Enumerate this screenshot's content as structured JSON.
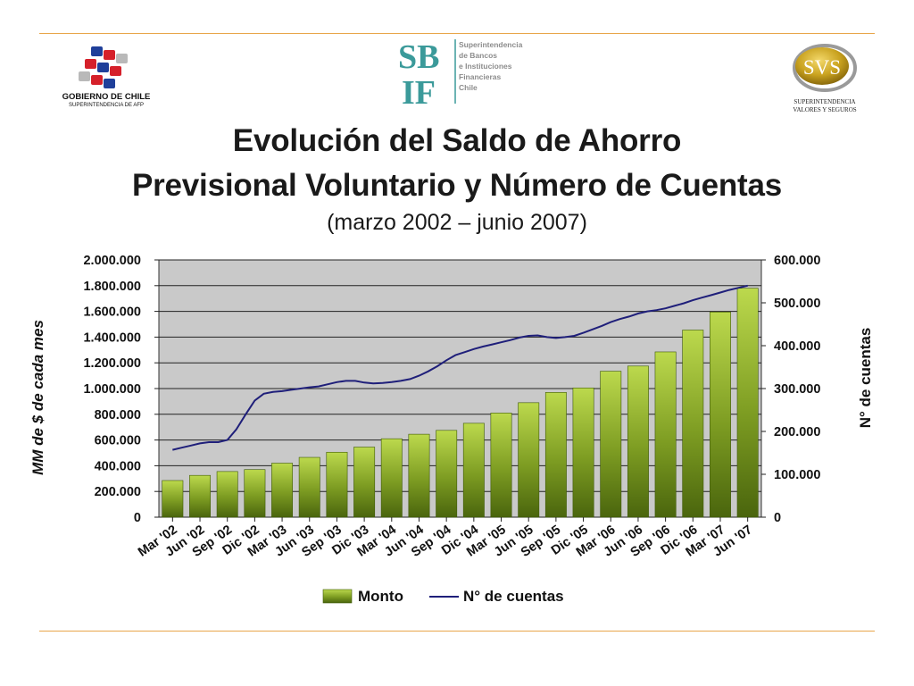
{
  "header": {
    "logo_left": {
      "name": "gobierno-de-chile-logo",
      "line1": "GOBIERNO DE CHILE",
      "line2": "SUPERINTENDENCIA DE AFP"
    },
    "logo_center": {
      "name": "sbif-logo",
      "mark_top": "SB",
      "mark_bottom": "IF",
      "lines": [
        "Superintendencia",
        "de Bancos",
        "e Instituciones",
        "Financieras",
        "Chile"
      ]
    },
    "logo_right": {
      "name": "svs-logo",
      "mark": "SVS",
      "line1": "SUPERINTENDENCIA",
      "line2": "VALORES Y SEGUROS"
    }
  },
  "slide": {
    "title_line1": "Evolución del Saldo de Ahorro",
    "title_line2": "Previsional Voluntario y Número de Cuentas",
    "subtitle": "(marzo 2002 – junio 2007)"
  },
  "colors": {
    "rule": "#e8a64a",
    "plot_bg": "#c9c9c9",
    "bar_light": "#b9d64a",
    "bar_dark": "#4f6b10",
    "line": "#1f1f7a"
  },
  "chart_data": {
    "type": "bar",
    "categories": [
      "Mar '02",
      "Jun '02",
      "Sep '02",
      "Dic '02",
      "Mar '03",
      "Jun '03",
      "Sep '03",
      "Dic '03",
      "Mar '04",
      "Jun '04",
      "Sep '04",
      "Dic '04",
      "Mar '05",
      "Jun '05",
      "Sep '05",
      "Dic '05",
      "Mar '06",
      "Jun '06",
      "Sep '06",
      "Dic '06",
      "Mar '07",
      "Jun '07"
    ],
    "series": [
      {
        "name": "Monto",
        "type": "bar",
        "axis": "left",
        "values": [
          285000,
          325000,
          355000,
          370000,
          420000,
          465000,
          505000,
          545000,
          610000,
          645000,
          675000,
          730000,
          810000,
          890000,
          970000,
          1005000,
          1135000,
          1175000,
          1285000,
          1455000,
          1595000,
          1780000
        ]
      },
      {
        "name": "N° de cuentas",
        "type": "line",
        "axis": "right",
        "x": [
          0,
          0.33,
          0.67,
          1,
          1.33,
          1.67,
          2,
          2.33,
          2.67,
          3,
          3.33,
          3.67,
          4,
          4.33,
          4.67,
          5,
          5.33,
          5.67,
          6,
          6.33,
          6.67,
          7,
          7.33,
          7.67,
          8,
          8.33,
          8.67,
          9,
          9.33,
          9.67,
          10,
          10.33,
          10.67,
          11,
          11.33,
          11.67,
          12,
          12.33,
          12.67,
          13,
          13.33,
          13.67,
          14,
          14.33,
          14.67,
          15,
          15.33,
          15.67,
          16,
          16.33,
          16.67,
          17,
          17.33,
          17.67,
          18,
          18.33,
          18.67,
          19,
          19.33,
          19.67,
          20,
          20.33,
          20.67,
          21
        ],
        "values": [
          157000,
          162000,
          167000,
          172000,
          175000,
          175000,
          180000,
          205000,
          240000,
          272000,
          288000,
          292000,
          294000,
          297000,
          300000,
          303000,
          305000,
          310000,
          315000,
          318000,
          318000,
          314000,
          312000,
          313000,
          315000,
          318000,
          322000,
          330000,
          340000,
          352000,
          366000,
          378000,
          385000,
          392000,
          398000,
          403000,
          408000,
          413000,
          419000,
          423000,
          424000,
          420000,
          418000,
          420000,
          423000,
          430000,
          438000,
          446000,
          455000,
          462000,
          468000,
          475000,
          480000,
          483000,
          487000,
          493000,
          499000,
          506000,
          512000,
          518000,
          524000,
          530000,
          535000,
          540000
        ]
      }
    ],
    "title": "",
    "xlabel": "",
    "ylabel": "MM de $ de cada mes",
    "ylabel_right": "N° de cuentas",
    "ylim": [
      0,
      2000000
    ],
    "ylim_right": [
      0,
      600000
    ],
    "yticks": [
      "0",
      "200.000",
      "400.000",
      "600.000",
      "800.000",
      "1.000.000",
      "1.200.000",
      "1.400.000",
      "1.600.000",
      "1.800.000",
      "2.000.000"
    ],
    "yticks_right": [
      "0",
      "100.000",
      "200.000",
      "300.000",
      "400.000",
      "500.000",
      "600.000"
    ],
    "grid": true,
    "legend": {
      "position": "bottom",
      "entries": [
        "Monto",
        "N° de cuentas"
      ]
    }
  }
}
